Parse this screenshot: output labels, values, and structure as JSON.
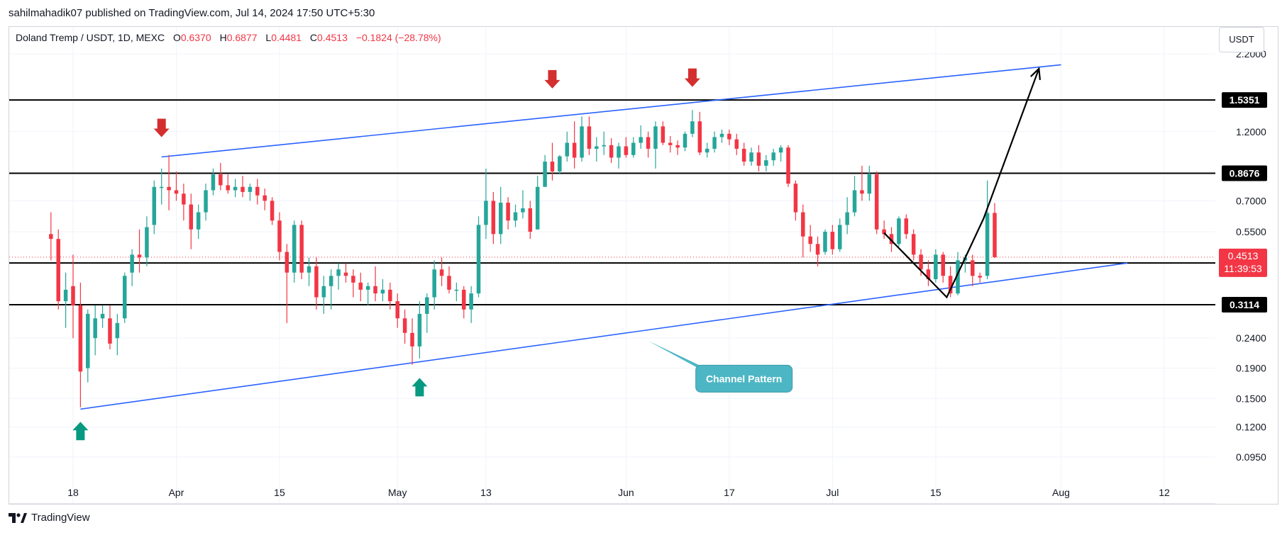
{
  "header": {
    "published_line": "sahilmahadik07 published on TradingView.com, Jul 14, 2024 17:50 UTC+5:30"
  },
  "legend": {
    "symbol": "Doland Tremp / USDT, 1D, MEXC",
    "open_label": "O",
    "open": "0.6370",
    "high_label": "H",
    "high": "0.6877",
    "low_label": "L",
    "low": "0.4481",
    "close_label": "C",
    "close": "0.4513",
    "change": "−0.1824 (−28.78%)"
  },
  "currency_button": "USDT",
  "footer": {
    "brand": "TradingView"
  },
  "colors": {
    "up": "#26a69a",
    "down": "#f23645",
    "trend": "#2962ff",
    "level": "#000000",
    "callout": "#4db6c4"
  },
  "chart_data": {
    "type": "candlestick",
    "scale": "log",
    "ylim": [
      0.08,
      2.4
    ],
    "y_ticks": [
      "2.2000",
      "1.2000",
      "0.7000",
      "0.5500",
      "0.2400",
      "0.1900",
      "0.1500",
      "0.1200",
      "0.0950"
    ],
    "x_ticks": [
      "18",
      "Apr",
      "15",
      "May",
      "13",
      "Jun",
      "17",
      "Jul",
      "15",
      "Aug",
      "12"
    ],
    "x_tick_days": [
      0,
      14,
      28,
      44,
      56,
      75,
      89,
      103,
      117,
      134,
      148
    ],
    "x_range_days": [
      -8,
      157
    ],
    "horizontal_levels": [
      "1.5351",
      "0.8676",
      "0.4310",
      "0.3114"
    ],
    "last_price": {
      "value": "0.4513",
      "countdown": "11:39:53"
    },
    "candles": [
      {
        "day": -3,
        "o": 0.54,
        "h": 0.64,
        "l": 0.44,
        "c": 0.52
      },
      {
        "day": -2,
        "o": 0.52,
        "h": 0.56,
        "l": 0.3,
        "c": 0.32
      },
      {
        "day": -1,
        "o": 0.32,
        "h": 0.4,
        "l": 0.26,
        "c": 0.35
      },
      {
        "day": 0,
        "o": 0.36,
        "h": 0.46,
        "l": 0.24,
        "c": 0.31
      },
      {
        "day": 1,
        "o": 0.31,
        "h": 0.37,
        "l": 0.14,
        "c": 0.185
      },
      {
        "day": 2,
        "o": 0.19,
        "h": 0.3,
        "l": 0.17,
        "c": 0.29
      },
      {
        "day": 3,
        "o": 0.24,
        "h": 0.31,
        "l": 0.21,
        "c": 0.28
      },
      {
        "day": 4,
        "o": 0.28,
        "h": 0.31,
        "l": 0.26,
        "c": 0.29
      },
      {
        "day": 5,
        "o": 0.28,
        "h": 0.31,
        "l": 0.22,
        "c": 0.23
      },
      {
        "day": 6,
        "o": 0.24,
        "h": 0.29,
        "l": 0.21,
        "c": 0.27
      },
      {
        "day": 7,
        "o": 0.28,
        "h": 0.4,
        "l": 0.27,
        "c": 0.39
      },
      {
        "day": 8,
        "o": 0.4,
        "h": 0.48,
        "l": 0.36,
        "c": 0.46
      },
      {
        "day": 9,
        "o": 0.46,
        "h": 0.56,
        "l": 0.4,
        "c": 0.45
      },
      {
        "day": 10,
        "o": 0.45,
        "h": 0.62,
        "l": 0.42,
        "c": 0.57
      },
      {
        "day": 11,
        "o": 0.58,
        "h": 0.82,
        "l": 0.54,
        "c": 0.78
      },
      {
        "day": 12,
        "o": 0.78,
        "h": 0.9,
        "l": 0.68,
        "c": 0.78
      },
      {
        "day": 13,
        "o": 0.78,
        "h": 1.0,
        "l": 0.65,
        "c": 0.76
      },
      {
        "day": 14,
        "o": 0.76,
        "h": 0.88,
        "l": 0.7,
        "c": 0.74
      },
      {
        "day": 15,
        "o": 0.74,
        "h": 0.8,
        "l": 0.6,
        "c": 0.68
      },
      {
        "day": 16,
        "o": 0.68,
        "h": 0.74,
        "l": 0.48,
        "c": 0.56
      },
      {
        "day": 17,
        "o": 0.56,
        "h": 0.68,
        "l": 0.52,
        "c": 0.64
      },
      {
        "day": 18,
        "o": 0.64,
        "h": 0.8,
        "l": 0.6,
        "c": 0.76
      },
      {
        "day": 19,
        "o": 0.76,
        "h": 0.9,
        "l": 0.73,
        "c": 0.86
      },
      {
        "day": 20,
        "o": 0.86,
        "h": 0.94,
        "l": 0.76,
        "c": 0.79
      },
      {
        "day": 21,
        "o": 0.79,
        "h": 0.86,
        "l": 0.74,
        "c": 0.76
      },
      {
        "day": 22,
        "o": 0.76,
        "h": 0.83,
        "l": 0.72,
        "c": 0.78
      },
      {
        "day": 23,
        "o": 0.78,
        "h": 0.85,
        "l": 0.72,
        "c": 0.75
      },
      {
        "day": 24,
        "o": 0.75,
        "h": 0.8,
        "l": 0.7,
        "c": 0.78
      },
      {
        "day": 25,
        "o": 0.78,
        "h": 0.83,
        "l": 0.68,
        "c": 0.73
      },
      {
        "day": 26,
        "o": 0.73,
        "h": 0.77,
        "l": 0.65,
        "c": 0.7
      },
      {
        "day": 27,
        "o": 0.7,
        "h": 0.72,
        "l": 0.58,
        "c": 0.6
      },
      {
        "day": 28,
        "o": 0.6,
        "h": 0.64,
        "l": 0.44,
        "c": 0.47
      },
      {
        "day": 29,
        "o": 0.47,
        "h": 0.5,
        "l": 0.27,
        "c": 0.4
      },
      {
        "day": 30,
        "o": 0.4,
        "h": 0.6,
        "l": 0.37,
        "c": 0.58
      },
      {
        "day": 31,
        "o": 0.58,
        "h": 0.6,
        "l": 0.38,
        "c": 0.4
      },
      {
        "day": 32,
        "o": 0.4,
        "h": 0.45,
        "l": 0.36,
        "c": 0.42
      },
      {
        "day": 33,
        "o": 0.42,
        "h": 0.45,
        "l": 0.3,
        "c": 0.33
      },
      {
        "day": 34,
        "o": 0.33,
        "h": 0.39,
        "l": 0.29,
        "c": 0.36
      },
      {
        "day": 35,
        "o": 0.36,
        "h": 0.41,
        "l": 0.3,
        "c": 0.39
      },
      {
        "day": 36,
        "o": 0.39,
        "h": 0.43,
        "l": 0.35,
        "c": 0.41
      },
      {
        "day": 37,
        "o": 0.4,
        "h": 0.43,
        "l": 0.37,
        "c": 0.39
      },
      {
        "day": 38,
        "o": 0.39,
        "h": 0.41,
        "l": 0.33,
        "c": 0.37
      },
      {
        "day": 39,
        "o": 0.37,
        "h": 0.4,
        "l": 0.32,
        "c": 0.35
      },
      {
        "day": 40,
        "o": 0.35,
        "h": 0.37,
        "l": 0.31,
        "c": 0.36
      },
      {
        "day": 41,
        "o": 0.36,
        "h": 0.42,
        "l": 0.32,
        "c": 0.34
      },
      {
        "day": 42,
        "o": 0.34,
        "h": 0.38,
        "l": 0.32,
        "c": 0.35
      },
      {
        "day": 43,
        "o": 0.35,
        "h": 0.37,
        "l": 0.3,
        "c": 0.32
      },
      {
        "day": 44,
        "o": 0.32,
        "h": 0.34,
        "l": 0.26,
        "c": 0.28
      },
      {
        "day": 45,
        "o": 0.28,
        "h": 0.3,
        "l": 0.23,
        "c": 0.25
      },
      {
        "day": 46,
        "o": 0.25,
        "h": 0.28,
        "l": 0.195,
        "c": 0.225
      },
      {
        "day": 47,
        "o": 0.225,
        "h": 0.32,
        "l": 0.205,
        "c": 0.29
      },
      {
        "day": 48,
        "o": 0.29,
        "h": 0.34,
        "l": 0.25,
        "c": 0.33
      },
      {
        "day": 49,
        "o": 0.33,
        "h": 0.44,
        "l": 0.3,
        "c": 0.41
      },
      {
        "day": 50,
        "o": 0.41,
        "h": 0.45,
        "l": 0.36,
        "c": 0.39
      },
      {
        "day": 51,
        "o": 0.39,
        "h": 0.42,
        "l": 0.34,
        "c": 0.35
      },
      {
        "day": 52,
        "o": 0.35,
        "h": 0.37,
        "l": 0.32,
        "c": 0.35
      },
      {
        "day": 53,
        "o": 0.35,
        "h": 0.36,
        "l": 0.28,
        "c": 0.3
      },
      {
        "day": 54,
        "o": 0.3,
        "h": 0.36,
        "l": 0.27,
        "c": 0.34
      },
      {
        "day": 55,
        "o": 0.34,
        "h": 0.62,
        "l": 0.33,
        "c": 0.58
      },
      {
        "day": 56,
        "o": 0.58,
        "h": 0.9,
        "l": 0.52,
        "c": 0.7
      },
      {
        "day": 57,
        "o": 0.7,
        "h": 0.75,
        "l": 0.5,
        "c": 0.54
      },
      {
        "day": 58,
        "o": 0.54,
        "h": 0.78,
        "l": 0.5,
        "c": 0.69
      },
      {
        "day": 59,
        "o": 0.69,
        "h": 0.72,
        "l": 0.56,
        "c": 0.6
      },
      {
        "day": 60,
        "o": 0.6,
        "h": 0.68,
        "l": 0.57,
        "c": 0.64
      },
      {
        "day": 61,
        "o": 0.64,
        "h": 0.76,
        "l": 0.61,
        "c": 0.66
      },
      {
        "day": 62,
        "o": 0.66,
        "h": 0.7,
        "l": 0.52,
        "c": 0.55
      },
      {
        "day": 63,
        "o": 0.56,
        "h": 0.85,
        "l": 0.56,
        "c": 0.78
      },
      {
        "day": 64,
        "o": 0.78,
        "h": 1.0,
        "l": 0.78,
        "c": 0.95
      },
      {
        "day": 65,
        "o": 0.95,
        "h": 1.1,
        "l": 0.82,
        "c": 0.88
      },
      {
        "day": 66,
        "o": 0.88,
        "h": 1.0,
        "l": 0.86,
        "c": 0.99
      },
      {
        "day": 67,
        "o": 0.99,
        "h": 1.2,
        "l": 0.95,
        "c": 1.1
      },
      {
        "day": 68,
        "o": 1.1,
        "h": 1.3,
        "l": 0.9,
        "c": 0.98
      },
      {
        "day": 69,
        "o": 0.98,
        "h": 1.35,
        "l": 0.95,
        "c": 1.25
      },
      {
        "day": 70,
        "o": 1.25,
        "h": 1.35,
        "l": 1.0,
        "c": 1.05
      },
      {
        "day": 71,
        "o": 1.05,
        "h": 1.15,
        "l": 0.95,
        "c": 1.07
      },
      {
        "day": 72,
        "o": 1.07,
        "h": 1.2,
        "l": 1.0,
        "c": 1.08
      },
      {
        "day": 73,
        "o": 1.08,
        "h": 1.14,
        "l": 0.94,
        "c": 0.98
      },
      {
        "day": 74,
        "o": 0.98,
        "h": 1.1,
        "l": 0.9,
        "c": 1.07
      },
      {
        "day": 75,
        "o": 1.07,
        "h": 1.15,
        "l": 0.98,
        "c": 1.0
      },
      {
        "day": 76,
        "o": 1.0,
        "h": 1.15,
        "l": 0.98,
        "c": 1.1
      },
      {
        "day": 77,
        "o": 1.1,
        "h": 1.26,
        "l": 1.05,
        "c": 1.15
      },
      {
        "day": 78,
        "o": 1.15,
        "h": 1.2,
        "l": 0.98,
        "c": 1.05
      },
      {
        "day": 79,
        "o": 1.05,
        "h": 1.3,
        "l": 0.9,
        "c": 1.25
      },
      {
        "day": 80,
        "o": 1.25,
        "h": 1.3,
        "l": 1.08,
        "c": 1.1
      },
      {
        "day": 81,
        "o": 1.1,
        "h": 1.16,
        "l": 1.02,
        "c": 1.08
      },
      {
        "day": 82,
        "o": 1.08,
        "h": 1.12,
        "l": 1.0,
        "c": 1.06
      },
      {
        "day": 83,
        "o": 1.06,
        "h": 1.2,
        "l": 1.03,
        "c": 1.18
      },
      {
        "day": 84,
        "o": 1.18,
        "h": 1.42,
        "l": 1.15,
        "c": 1.3
      },
      {
        "day": 85,
        "o": 1.3,
        "h": 1.4,
        "l": 1.0,
        "c": 1.02
      },
      {
        "day": 86,
        "o": 1.02,
        "h": 1.1,
        "l": 0.98,
        "c": 1.05
      },
      {
        "day": 87,
        "o": 1.05,
        "h": 1.2,
        "l": 1.02,
        "c": 1.15
      },
      {
        "day": 88,
        "o": 1.15,
        "h": 1.22,
        "l": 1.1,
        "c": 1.18
      },
      {
        "day": 89,
        "o": 1.18,
        "h": 1.22,
        "l": 1.08,
        "c": 1.13
      },
      {
        "day": 90,
        "o": 1.13,
        "h": 1.18,
        "l": 1.0,
        "c": 1.05
      },
      {
        "day": 91,
        "o": 1.05,
        "h": 1.1,
        "l": 0.92,
        "c": 0.95
      },
      {
        "day": 92,
        "o": 0.95,
        "h": 1.06,
        "l": 0.92,
        "c": 1.02
      },
      {
        "day": 93,
        "o": 1.02,
        "h": 1.08,
        "l": 0.88,
        "c": 0.92
      },
      {
        "day": 94,
        "o": 0.92,
        "h": 1.0,
        "l": 0.88,
        "c": 0.96
      },
      {
        "day": 95,
        "o": 0.96,
        "h": 1.05,
        "l": 0.92,
        "c": 1.02
      },
      {
        "day": 96,
        "o": 1.02,
        "h": 1.08,
        "l": 0.95,
        "c": 1.06
      },
      {
        "day": 97,
        "o": 1.06,
        "h": 1.08,
        "l": 0.78,
        "c": 0.8
      },
      {
        "day": 98,
        "o": 0.8,
        "h": 0.82,
        "l": 0.6,
        "c": 0.64
      },
      {
        "day": 99,
        "o": 0.64,
        "h": 0.68,
        "l": 0.45,
        "c": 0.53
      },
      {
        "day": 100,
        "o": 0.53,
        "h": 0.58,
        "l": 0.47,
        "c": 0.5
      },
      {
        "day": 101,
        "o": 0.5,
        "h": 0.53,
        "l": 0.42,
        "c": 0.46
      },
      {
        "day": 102,
        "o": 0.47,
        "h": 0.56,
        "l": 0.46,
        "c": 0.55
      },
      {
        "day": 103,
        "o": 0.55,
        "h": 0.58,
        "l": 0.46,
        "c": 0.48
      },
      {
        "day": 104,
        "o": 0.48,
        "h": 0.61,
        "l": 0.47,
        "c": 0.58
      },
      {
        "day": 105,
        "o": 0.58,
        "h": 0.72,
        "l": 0.54,
        "c": 0.64
      },
      {
        "day": 106,
        "o": 0.64,
        "h": 0.85,
        "l": 0.62,
        "c": 0.76
      },
      {
        "day": 107,
        "o": 0.76,
        "h": 0.92,
        "l": 0.7,
        "c": 0.74
      },
      {
        "day": 108,
        "o": 0.74,
        "h": 0.92,
        "l": 0.7,
        "c": 0.86
      },
      {
        "day": 109,
        "o": 0.86,
        "h": 0.88,
        "l": 0.54,
        "c": 0.56
      },
      {
        "day": 110,
        "o": 0.56,
        "h": 0.6,
        "l": 0.52,
        "c": 0.54
      },
      {
        "day": 111,
        "o": 0.54,
        "h": 0.57,
        "l": 0.47,
        "c": 0.5
      },
      {
        "day": 112,
        "o": 0.5,
        "h": 0.62,
        "l": 0.49,
        "c": 0.61
      },
      {
        "day": 113,
        "o": 0.61,
        "h": 0.63,
        "l": 0.52,
        "c": 0.54
      },
      {
        "day": 114,
        "o": 0.54,
        "h": 0.56,
        "l": 0.44,
        "c": 0.46
      },
      {
        "day": 115,
        "o": 0.46,
        "h": 0.48,
        "l": 0.39,
        "c": 0.41
      },
      {
        "day": 116,
        "o": 0.41,
        "h": 0.44,
        "l": 0.36,
        "c": 0.38
      },
      {
        "day": 117,
        "o": 0.38,
        "h": 0.48,
        "l": 0.37,
        "c": 0.46
      },
      {
        "day": 118,
        "o": 0.46,
        "h": 0.47,
        "l": 0.37,
        "c": 0.39
      },
      {
        "day": 119,
        "o": 0.39,
        "h": 0.42,
        "l": 0.33,
        "c": 0.34
      },
      {
        "day": 120,
        "o": 0.34,
        "h": 0.47,
        "l": 0.335,
        "c": 0.44
      },
      {
        "day": 121,
        "o": 0.44,
        "h": 0.46,
        "l": 0.4,
        "c": 0.45
      },
      {
        "day": 122,
        "o": 0.44,
        "h": 0.46,
        "l": 0.36,
        "c": 0.39
      },
      {
        "day": 123,
        "o": 0.39,
        "h": 0.4,
        "l": 0.37,
        "c": 0.385
      },
      {
        "day": 124,
        "o": 0.39,
        "h": 0.82,
        "l": 0.38,
        "c": 0.637
      },
      {
        "day": 125,
        "o": 0.637,
        "h": 0.688,
        "l": 0.448,
        "c": 0.451
      }
    ],
    "trendlines": [
      {
        "from": {
          "day": 1,
          "price": 0.138
        },
        "to": {
          "day": 143,
          "price": 0.431
        }
      },
      {
        "from": {
          "day": 12,
          "price": 0.985
        },
        "to": {
          "day": 134,
          "price": 2.02
        }
      }
    ],
    "drawn_path": [
      {
        "day": 110,
        "price": 0.545
      },
      {
        "day": 118.5,
        "price": 0.33
      },
      {
        "day": 123.5,
        "price": 0.61
      },
      {
        "day": 131,
        "price": 1.96
      }
    ],
    "markers": [
      {
        "type": "down",
        "day": 12,
        "price": 1.15
      },
      {
        "type": "down",
        "day": 65,
        "price": 1.68
      },
      {
        "type": "down",
        "day": 84,
        "price": 1.7
      },
      {
        "type": "up",
        "day": 1,
        "price": 0.125
      },
      {
        "type": "up",
        "day": 47,
        "price": 0.176
      }
    ],
    "annotation": {
      "text": "Channel Pattern",
      "point": {
        "day": 78,
        "price": 0.235
      },
      "box": {
        "day": 91,
        "price": 0.175
      }
    }
  }
}
